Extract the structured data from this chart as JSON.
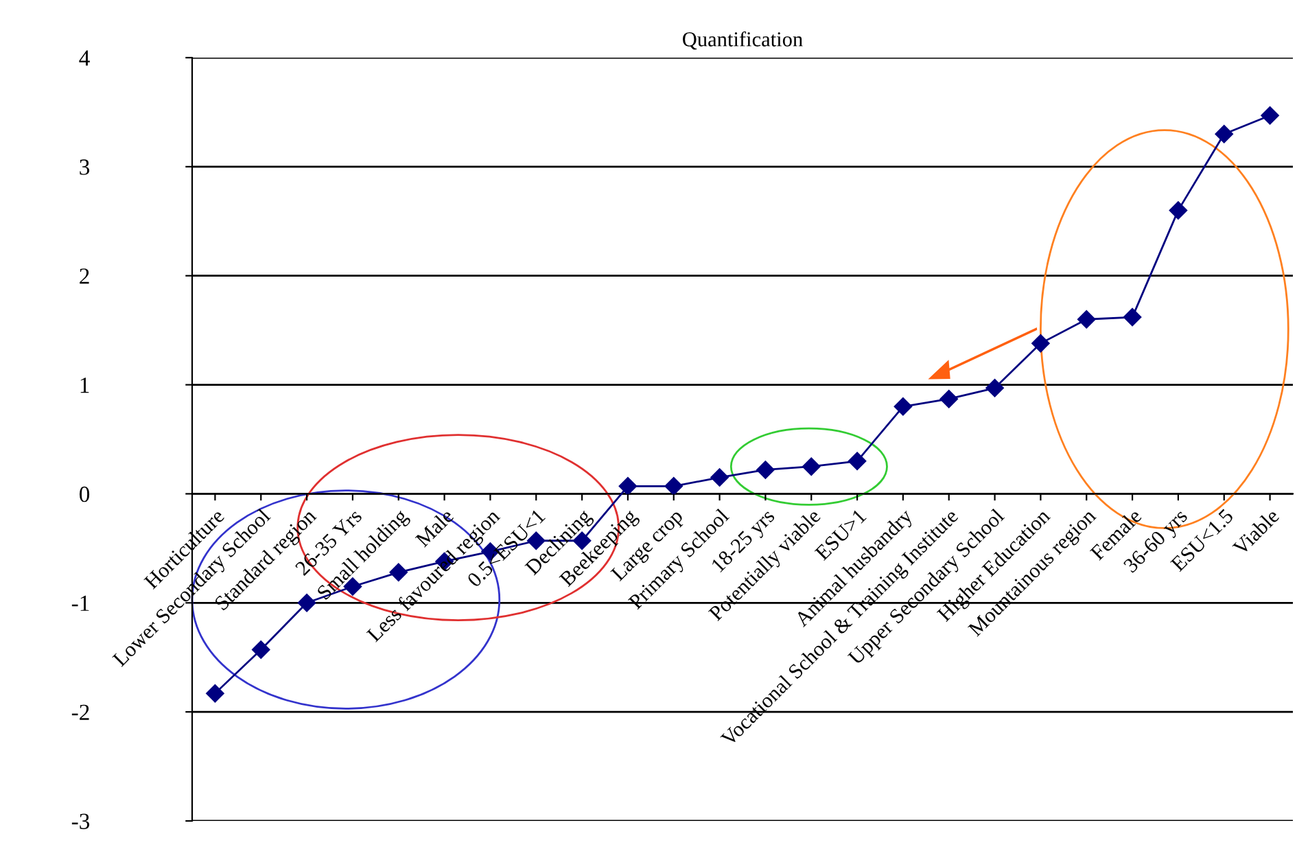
{
  "chart_data": {
    "type": "line",
    "title": "Quantification",
    "categories": [
      "Horticulture",
      "Lower Secondary School",
      "Standard region",
      "26-35 Yrs",
      "Small holding",
      "Male",
      "Less favoured region",
      "0.5<ESU<1",
      "Declining",
      "Beekeeping",
      "Large crop",
      "Primary School",
      "18-25 yrs",
      "Potentially viable",
      "ESU>1",
      "Animal husbandry",
      "Vocational School & Training Institute",
      "Upper Secondary School",
      "Higher Education",
      "Mountainous region",
      "Female",
      "36-60 yrs",
      "ESU<1.5",
      "Viable"
    ],
    "series": [
      {
        "color": "#000080",
        "values": [
          -1.83,
          -1.43,
          -1.0,
          -0.85,
          -0.72,
          -0.62,
          -0.53,
          -0.43,
          -0.43,
          0.07,
          0.07,
          0.15,
          0.22,
          0.25,
          0.3,
          0.8,
          0.87,
          0.97,
          1.38,
          1.6,
          1.62,
          2.6,
          3.3,
          3.47
        ]
      }
    ],
    "ylim": [
      -3,
      4
    ],
    "yticks": [
      -3,
      -2,
      -1,
      0,
      1,
      2,
      3,
      4
    ],
    "grid": "y",
    "marker": "diamond",
    "line_style": "solid"
  }
}
